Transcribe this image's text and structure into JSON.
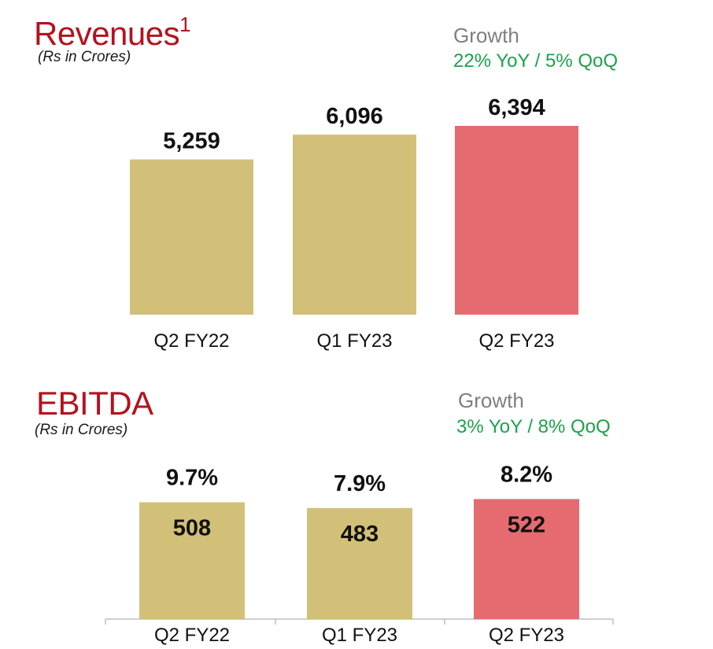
{
  "revenues": {
    "title": "Revenues",
    "footnote_marker": "1",
    "subtitle": "(Rs in Crores)",
    "growth_label": "Growth",
    "growth_value": "22% YoY / 5% QoQ"
  },
  "ebitda": {
    "title": "EBITDA",
    "subtitle": "(Rs in Crores)",
    "growth_label": "Growth",
    "growth_value": "3% YoY / 8% QoQ"
  },
  "colors": {
    "title": "#b3121e",
    "growth_label": "#7f7f7f",
    "growth_value": "#1aa34a",
    "bar_prior": "#d3c078",
    "bar_current": "#e66b70",
    "axis": "#bfbfbf"
  },
  "chart_data": [
    {
      "type": "bar",
      "title": "Revenues",
      "units": "Rs in Crores",
      "categories": [
        "Q2 FY22",
        "Q1 FY23",
        "Q2 FY23"
      ],
      "values": [
        5259,
        6096,
        6394
      ],
      "value_labels": [
        "5,259",
        "6,096",
        "6,394"
      ],
      "highlight_index": 2,
      "ylim": [
        0,
        6900
      ]
    },
    {
      "type": "bar",
      "title": "EBITDA",
      "units": "Rs in Crores",
      "categories": [
        "Q2 FY22",
        "Q1 FY23",
        "Q2 FY23"
      ],
      "values": [
        508,
        483,
        522
      ],
      "value_labels": [
        "508",
        "483",
        "522"
      ],
      "margin_labels": [
        "9.7%",
        "7.9%",
        "8.2%"
      ],
      "highlight_index": 2,
      "ylim": [
        0,
        537
      ]
    }
  ]
}
